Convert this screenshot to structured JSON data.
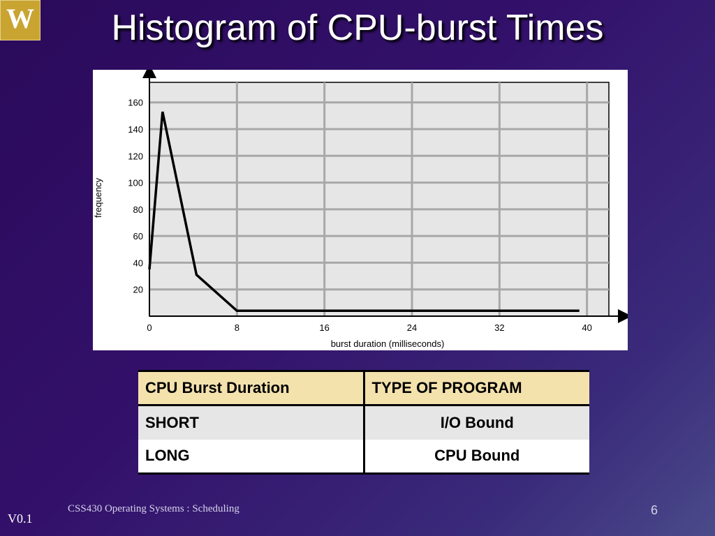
{
  "slide": {
    "logo_letter": "W",
    "title": "Histogram of CPU-burst Times",
    "footer": "CSS430 Operating Systems : Scheduling",
    "page_number": "6",
    "version": "V0.1"
  },
  "chart_data": {
    "type": "line",
    "title": "",
    "xlabel": "burst duration (milliseconds)",
    "ylabel": "frequency",
    "xlim": [
      0,
      42
    ],
    "ylim": [
      0,
      175
    ],
    "x_ticks": [
      0,
      8,
      16,
      24,
      32,
      40
    ],
    "y_ticks": [
      20,
      40,
      60,
      80,
      100,
      120,
      140,
      160
    ],
    "grid": true,
    "series": [
      {
        "x": [
          0,
          1.2,
          4.3,
          8,
          39.3
        ],
        "y": [
          35,
          153,
          31,
          4,
          4
        ]
      }
    ],
    "colors": {
      "background": "#e6e6e6",
      "grid": "#a8a8a8",
      "line": "#000000"
    }
  },
  "table": {
    "headers": [
      "CPU Burst Duration",
      "TYPE OF PROGRAM"
    ],
    "rows": [
      [
        "SHORT",
        "I/O Bound"
      ],
      [
        "LONG",
        "CPU Bound"
      ]
    ]
  }
}
